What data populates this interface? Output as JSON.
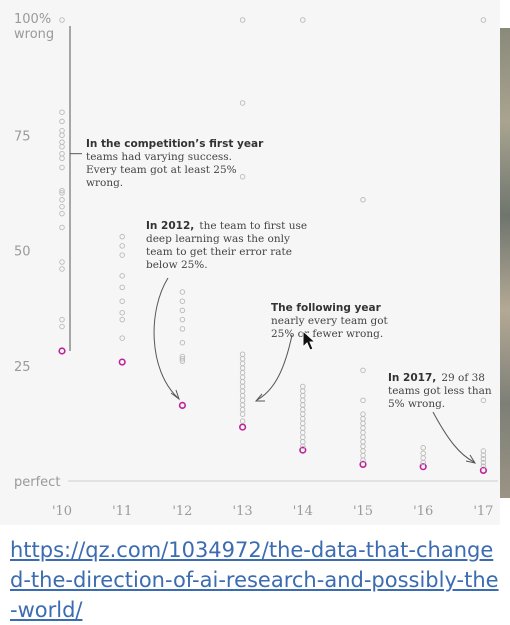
{
  "chart_data": {
    "type": "scatter",
    "title": "",
    "xlabel": "",
    "ylabel": "",
    "x_ticks": [
      "'10",
      "'11",
      "'12",
      "'13",
      "'14",
      "'15",
      "'16",
      "'17"
    ],
    "y_ticks": [
      {
        "value": 100,
        "lines": [
          "100%",
          "wrong"
        ]
      },
      {
        "value": 75,
        "lines": [
          "75"
        ]
      },
      {
        "value": 50,
        "lines": [
          "50"
        ]
      },
      {
        "value": 25,
        "lines": [
          "25"
        ]
      },
      {
        "value": 0,
        "lines": [
          "perfect"
        ]
      }
    ],
    "ylim": [
      0,
      100
    ],
    "colors": {
      "points": "#b9b9b9",
      "best": "#c0209a",
      "line": "#555555",
      "axis": "#cfcfcf"
    },
    "series": [
      {
        "x": "'10",
        "values": [
          28.2,
          33.5,
          35,
          46,
          47.5,
          55,
          58,
          59.5,
          61,
          62.5,
          63,
          68,
          70,
          71,
          72.5,
          73.5,
          75,
          76,
          78,
          80,
          100
        ]
      },
      {
        "x": "'11",
        "values": [
          25.8,
          31,
          35,
          36.5,
          39,
          42,
          44.5,
          49,
          51,
          53
        ]
      },
      {
        "x": "'12",
        "values": [
          16.4,
          26,
          26.5,
          27,
          30,
          33,
          35,
          37,
          39,
          41
        ]
      },
      {
        "x": "'13",
        "values": [
          11.7,
          13,
          14.5,
          15.5,
          16.5,
          17.5,
          18.5,
          19.5,
          20.5,
          21.5,
          22.5,
          23.5,
          24.5,
          25.5,
          26.5,
          27.5,
          66,
          82,
          100
        ]
      },
      {
        "x": "'14",
        "values": [
          6.7,
          7.5,
          8.5,
          9.5,
          10.5,
          11.5,
          12.5,
          13.5,
          14.5,
          15.5,
          16.5,
          17.5,
          18.5,
          19.5,
          20.5,
          100
        ]
      },
      {
        "x": "'15",
        "values": [
          3.6,
          4.5,
          5.5,
          6.5,
          7.5,
          8.5,
          9.5,
          10.5,
          11.5,
          12.5,
          13.5,
          14.5,
          17.5,
          24,
          61
        ]
      },
      {
        "x": "'16",
        "values": [
          3.1,
          4,
          5,
          6,
          7.2
        ]
      },
      {
        "x": "'17",
        "values": [
          2.3,
          3.2,
          4,
          4.8,
          5.6,
          6.5,
          17.5,
          100
        ]
      }
    ],
    "best_values": [
      28.2,
      25.8,
      16.4,
      11.7,
      6.7,
      3.6,
      3.1,
      2.3
    ],
    "first_year_range": [
      28.2,
      100
    ],
    "annotations": [
      {
        "bold": "In the competition’s first year",
        "lines": [
          "teams had varying success.",
          "Every team got at least 25%",
          "wrong."
        ]
      },
      {
        "bold": "In 2012,",
        "lines": [
          "the team to first use",
          "deep learning was the only",
          "team to get their error rate",
          "below 25%."
        ]
      },
      {
        "bold": "The following year",
        "lines": [
          "nearly every team got",
          "25% or fewer wrong."
        ]
      },
      {
        "bold": "In 2017,",
        "lines": [
          "29 of 38",
          "teams got less than",
          "5% wrong."
        ]
      }
    ]
  },
  "link": {
    "text": "https://qz.com/1034972/the-data-that-changed-the-direction-of-ai-research-and-possibly-the-world/"
  }
}
